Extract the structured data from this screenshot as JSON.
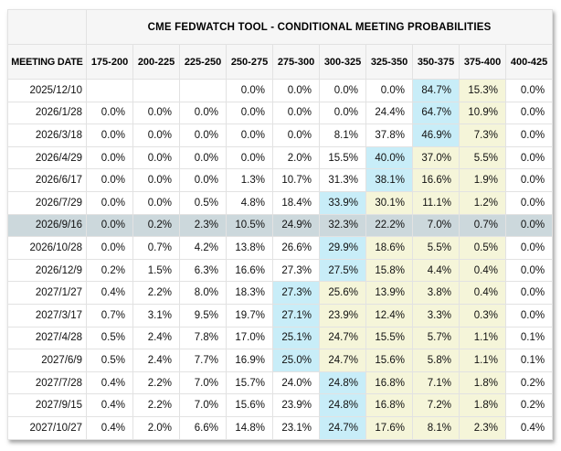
{
  "chart_data": {
    "type": "table",
    "title": "CME FEDWATCH TOOL - CONDITIONAL MEETING PROBABILITIES",
    "row_header_label": "MEETING DATE",
    "columns": [
      "175-200",
      "200-225",
      "225-250",
      "250-275",
      "275-300",
      "300-325",
      "325-350",
      "350-375",
      "375-400",
      "400-425"
    ],
    "rows": [
      {
        "date": "2025/12/10",
        "values": [
          "",
          "",
          "",
          "0.0%",
          "0.0%",
          "0.0%",
          "0.0%",
          "84.7%",
          "15.3%",
          "0.0%"
        ],
        "max_index": 7,
        "tail_indices": [
          8
        ],
        "selected": false
      },
      {
        "date": "2026/1/28",
        "values": [
          "0.0%",
          "0.0%",
          "0.0%",
          "0.0%",
          "0.0%",
          "0.0%",
          "24.4%",
          "64.7%",
          "10.9%",
          "0.0%"
        ],
        "max_index": 7,
        "tail_indices": [
          8
        ],
        "selected": false
      },
      {
        "date": "2026/3/18",
        "values": [
          "0.0%",
          "0.0%",
          "0.0%",
          "0.0%",
          "0.0%",
          "8.1%",
          "37.8%",
          "46.9%",
          "7.3%",
          "0.0%"
        ],
        "max_index": 7,
        "tail_indices": [
          8
        ],
        "selected": false
      },
      {
        "date": "2026/4/29",
        "values": [
          "0.0%",
          "0.0%",
          "0.0%",
          "0.0%",
          "2.0%",
          "15.5%",
          "40.0%",
          "37.0%",
          "5.5%",
          "0.0%"
        ],
        "max_index": 6,
        "tail_indices": [
          7,
          8
        ],
        "selected": false
      },
      {
        "date": "2026/6/17",
        "values": [
          "0.0%",
          "0.0%",
          "0.0%",
          "1.3%",
          "10.7%",
          "31.3%",
          "38.1%",
          "16.6%",
          "1.9%",
          "0.0%"
        ],
        "max_index": 6,
        "tail_indices": [
          7,
          8
        ],
        "selected": false
      },
      {
        "date": "2026/7/29",
        "values": [
          "0.0%",
          "0.0%",
          "0.5%",
          "4.8%",
          "18.4%",
          "33.9%",
          "30.1%",
          "11.1%",
          "1.2%",
          "0.0%"
        ],
        "max_index": 5,
        "tail_indices": [
          6,
          7,
          8
        ],
        "selected": false
      },
      {
        "date": "2026/9/16",
        "values": [
          "0.0%",
          "0.2%",
          "2.3%",
          "10.5%",
          "24.9%",
          "32.3%",
          "22.2%",
          "7.0%",
          "0.7%",
          "0.0%"
        ],
        "max_index": null,
        "tail_indices": [],
        "selected": true
      },
      {
        "date": "2026/10/28",
        "values": [
          "0.0%",
          "0.7%",
          "4.2%",
          "13.8%",
          "26.6%",
          "29.9%",
          "18.6%",
          "5.5%",
          "0.5%",
          "0.0%"
        ],
        "max_index": 5,
        "tail_indices": [
          6,
          7,
          8
        ],
        "selected": false
      },
      {
        "date": "2026/12/9",
        "values": [
          "0.2%",
          "1.5%",
          "6.3%",
          "16.6%",
          "27.3%",
          "27.5%",
          "15.8%",
          "4.4%",
          "0.4%",
          "0.0%"
        ],
        "max_index": 5,
        "tail_indices": [
          6,
          7,
          8
        ],
        "selected": false
      },
      {
        "date": "2027/1/27",
        "values": [
          "0.4%",
          "2.2%",
          "8.0%",
          "18.3%",
          "27.3%",
          "25.6%",
          "13.9%",
          "3.8%",
          "0.4%",
          "0.0%"
        ],
        "max_index": 4,
        "tail_indices": [
          5,
          6,
          7,
          8
        ],
        "selected": false
      },
      {
        "date": "2027/3/17",
        "values": [
          "0.7%",
          "3.1%",
          "9.5%",
          "19.7%",
          "27.1%",
          "23.9%",
          "12.4%",
          "3.3%",
          "0.3%",
          "0.0%"
        ],
        "max_index": 4,
        "tail_indices": [
          5,
          6,
          7,
          8
        ],
        "selected": false
      },
      {
        "date": "2027/4/28",
        "values": [
          "0.5%",
          "2.4%",
          "7.8%",
          "17.0%",
          "25.1%",
          "24.7%",
          "15.5%",
          "5.7%",
          "1.1%",
          "0.1%"
        ],
        "max_index": 4,
        "tail_indices": [
          5,
          6,
          7,
          8
        ],
        "selected": false
      },
      {
        "date": "2027/6/9",
        "values": [
          "0.5%",
          "2.4%",
          "7.7%",
          "16.9%",
          "25.0%",
          "24.7%",
          "15.6%",
          "5.8%",
          "1.1%",
          "0.1%"
        ],
        "max_index": 4,
        "tail_indices": [
          5,
          6,
          7,
          8
        ],
        "selected": false
      },
      {
        "date": "2027/7/28",
        "values": [
          "0.4%",
          "2.2%",
          "7.0%",
          "15.7%",
          "24.0%",
          "24.8%",
          "16.8%",
          "7.1%",
          "1.8%",
          "0.2%"
        ],
        "max_index": 5,
        "tail_indices": [
          6,
          7,
          8
        ],
        "selected": false
      },
      {
        "date": "2027/9/15",
        "values": [
          "0.4%",
          "2.2%",
          "7.0%",
          "15.6%",
          "23.9%",
          "24.8%",
          "16.8%",
          "7.2%",
          "1.8%",
          "0.2%"
        ],
        "max_index": 5,
        "tail_indices": [
          6,
          7,
          8
        ],
        "selected": false
      },
      {
        "date": "2027/10/27",
        "values": [
          "0.4%",
          "2.0%",
          "6.6%",
          "14.8%",
          "23.1%",
          "24.7%",
          "17.6%",
          "8.1%",
          "2.3%",
          "0.4%"
        ],
        "max_index": 5,
        "tail_indices": [
          6,
          7,
          8
        ],
        "selected": false
      }
    ]
  },
  "colors": {
    "max_probability_cell": "#c8edf8",
    "trailing_probability_cell": "#f5f5d9",
    "selected_row": "#ccd8dc",
    "header_background": "#f6f6f6",
    "grid_border": "#e2e2e2"
  }
}
